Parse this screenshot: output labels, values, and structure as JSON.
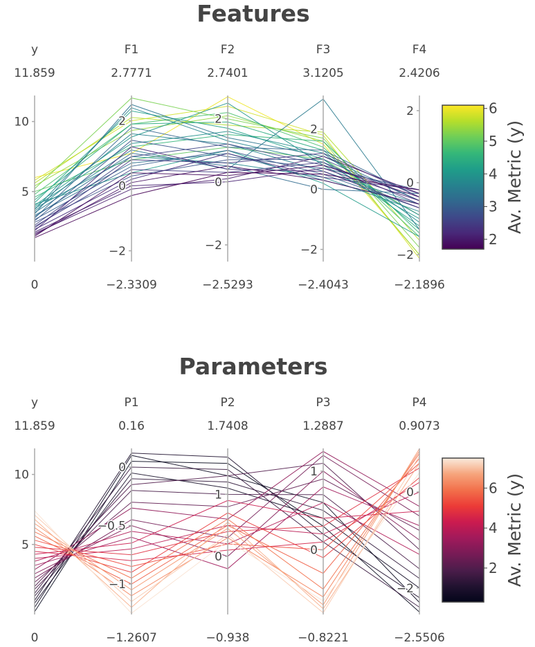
{
  "panels": [
    {
      "title": "Features",
      "colorbar": {
        "title": "Av. Metric (y)",
        "ticks": [
          2,
          3,
          4,
          5,
          6
        ],
        "range": [
          1.7,
          6.1
        ],
        "colorscale": "viridis"
      }
    },
    {
      "title": "Parameters",
      "colorbar": {
        "title": "Av. Metric (y)",
        "ticks": [
          2,
          4,
          6
        ],
        "range": [
          0.3,
          7.5
        ],
        "colorscale": "rocket"
      }
    }
  ],
  "chart_data": [
    {
      "type": "parallel_coordinates",
      "title": "Features",
      "color_by": "y",
      "colorbar_title": "Av. Metric (y)",
      "dimensions": [
        {
          "label": "y",
          "max": "11.859",
          "min": "0",
          "range": [
            0,
            11.859
          ],
          "ticks": [
            5,
            10
          ]
        },
        {
          "label": "F1",
          "max": "2.7771",
          "min": "−2.3309",
          "range": [
            -2.3309,
            2.7771
          ],
          "ticks": [
            -2,
            0,
            2
          ]
        },
        {
          "label": "F2",
          "max": "2.7401",
          "min": "−2.5293",
          "range": [
            -2.5293,
            2.7401
          ],
          "ticks": [
            -2,
            0,
            2
          ]
        },
        {
          "label": "F3",
          "max": "3.1205",
          "min": "−2.4043",
          "range": [
            -2.4043,
            3.1205
          ],
          "ticks": [
            -2,
            0,
            2
          ]
        },
        {
          "label": "F4",
          "max": "2.4206",
          "min": "−2.1896",
          "range": [
            -2.1896,
            2.4206
          ],
          "ticks": [
            -2,
            0,
            2
          ]
        }
      ],
      "series": [
        {
          "values": [
            6.0,
            1.0,
            2.7,
            1.5,
            -2.0
          ]
        },
        {
          "values": [
            5.8,
            2.0,
            2.4,
            1.8,
            -2.1
          ]
        },
        {
          "values": [
            5.6,
            2.1,
            1.8,
            1.9,
            -1.6
          ]
        },
        {
          "values": [
            5.4,
            1.7,
            2.1,
            1.6,
            -2.0
          ]
        },
        {
          "values": [
            5.2,
            2.7,
            2.0,
            1.7,
            -1.8
          ]
        },
        {
          "values": [
            5.0,
            0.8,
            1.1,
            1.0,
            -0.9
          ]
        },
        {
          "values": [
            4.8,
            1.9,
            2.2,
            1.4,
            -1.5
          ]
        },
        {
          "values": [
            4.6,
            1.2,
            1.5,
            1.6,
            -1.4
          ]
        },
        {
          "values": [
            4.4,
            1.9,
            1.9,
            1.3,
            -1.3
          ]
        },
        {
          "values": [
            4.2,
            2.3,
            1.7,
            1.0,
            -1.2
          ]
        },
        {
          "values": [
            4.1,
            0.4,
            1.0,
            0.2,
            -1.5
          ]
        },
        {
          "values": [
            4.0,
            1.5,
            2.5,
            0.8,
            -1.0
          ]
        },
        {
          "values": [
            3.9,
            1.3,
            1.6,
            1.2,
            -1.1
          ]
        },
        {
          "values": [
            3.8,
            0.9,
            0.6,
            0.4,
            -0.8
          ]
        },
        {
          "values": [
            3.7,
            2.4,
            1.3,
            0.9,
            -0.9
          ]
        },
        {
          "values": [
            3.6,
            1.6,
            1.2,
            0.6,
            -0.6
          ]
        },
        {
          "values": [
            3.5,
            1.1,
            0.4,
            3.0,
            -1.3
          ]
        },
        {
          "values": [
            3.4,
            2.5,
            1.4,
            1.1,
            -0.5
          ]
        },
        {
          "values": [
            3.3,
            0.7,
            0.9,
            0.3,
            -0.6
          ]
        },
        {
          "values": [
            3.2,
            1.0,
            0.5,
            0.0,
            -0.3
          ]
        },
        {
          "values": [
            3.1,
            1.8,
            1.1,
            1.3,
            -0.4
          ]
        },
        {
          "values": [
            3.0,
            0.6,
            1.0,
            0.5,
            -0.7
          ]
        },
        {
          "values": [
            2.9,
            1.4,
            0.8,
            0.7,
            -0.2
          ]
        },
        {
          "values": [
            2.8,
            0.3,
            0.7,
            1.0,
            -0.5
          ]
        },
        {
          "values": [
            2.6,
            0.9,
            1.2,
            0.8,
            -0.3
          ]
        },
        {
          "values": [
            2.5,
            0.5,
            0.3,
            0.9,
            -0.6
          ]
        },
        {
          "values": [
            2.4,
            0.8,
            0.6,
            1.2,
            -0.4
          ]
        },
        {
          "values": [
            2.3,
            0.2,
            0.9,
            0.4,
            -0.2
          ]
        },
        {
          "values": [
            2.2,
            1.2,
            0.4,
            0.6,
            -0.7
          ]
        },
        {
          "values": [
            2.1,
            0.0,
            0.0,
            0.7,
            -0.5
          ]
        },
        {
          "values": [
            2.0,
            -0.1,
            0.1,
            1.1,
            -0.3
          ]
        },
        {
          "values": [
            1.9,
            0.1,
            0.5,
            0.3,
            -0.6
          ]
        },
        {
          "values": [
            1.8,
            0.4,
            0.2,
            0.8,
            -0.4
          ]
        },
        {
          "values": [
            1.7,
            -0.3,
            0.3,
            0.5,
            -0.2
          ]
        }
      ]
    },
    {
      "type": "parallel_coordinates",
      "title": "Parameters",
      "color_by": "y",
      "colorbar_title": "Av. Metric (y)",
      "dimensions": [
        {
          "label": "y",
          "max": "11.859",
          "min": "0",
          "range": [
            0,
            11.859
          ],
          "ticks": [
            5,
            10
          ]
        },
        {
          "label": "P1",
          "max": "0.16",
          "min": "−1.2607",
          "range": [
            -1.2607,
            0.16
          ],
          "ticks": [
            -1,
            -0.5,
            0
          ]
        },
        {
          "label": "P2",
          "max": "1.7408",
          "min": "−0.938",
          "range": [
            -0.938,
            1.7408
          ],
          "ticks": [
            0,
            1
          ]
        },
        {
          "label": "P3",
          "max": "1.2887",
          "min": "−0.8221",
          "range": [
            -0.8221,
            1.2887
          ],
          "ticks": [
            0,
            1
          ]
        },
        {
          "label": "P4",
          "max": "0.9073",
          "min": "−2.5506",
          "range": [
            -2.5506,
            0.9073
          ],
          "ticks": [
            -2,
            0
          ]
        }
      ],
      "series": [
        {
          "values": [
            0.2,
            0.05,
            1.5,
            0.3,
            -2.5
          ]
        },
        {
          "values": [
            0.5,
            0.1,
            1.3,
            0.6,
            -2.3
          ]
        },
        {
          "values": [
            0.8,
            -0.05,
            1.1,
            0.4,
            -2.0
          ]
        },
        {
          "values": [
            1.0,
            0.12,
            1.6,
            0.2,
            -2.2
          ]
        },
        {
          "values": [
            1.3,
            -0.1,
            1.2,
            0.5,
            -1.8
          ]
        },
        {
          "values": [
            1.5,
            0.0,
            1.4,
            0.1,
            -2.4
          ]
        },
        {
          "values": [
            1.8,
            -0.2,
            1.0,
            0.7,
            -1.6
          ]
        },
        {
          "values": [
            2.0,
            -0.15,
            1.3,
            1.1,
            -1.2
          ]
        },
        {
          "values": [
            2.3,
            -0.3,
            0.8,
            0.9,
            -0.8
          ]
        },
        {
          "values": [
            2.6,
            -0.45,
            0.3,
            1.2,
            -0.5
          ]
        },
        {
          "values": [
            2.9,
            -0.5,
            0.0,
            1.0,
            -1.0
          ]
        },
        {
          "values": [
            3.2,
            -0.35,
            0.6,
            1.25,
            -0.3
          ]
        },
        {
          "values": [
            3.5,
            -0.6,
            -0.2,
            0.8,
            -0.7
          ]
        },
        {
          "values": [
            3.8,
            -0.55,
            0.2,
            0.6,
            -1.3
          ]
        },
        {
          "values": [
            4.0,
            -0.7,
            0.5,
            0.2,
            0.0
          ]
        },
        {
          "values": [
            4.3,
            -0.65,
            0.9,
            0.4,
            -0.4
          ]
        },
        {
          "values": [
            4.5,
            -0.8,
            0.1,
            0.1,
            0.2
          ]
        },
        {
          "values": [
            4.8,
            -0.75,
            0.4,
            0.3,
            0.5
          ]
        },
        {
          "values": [
            5.0,
            -0.9,
            0.7,
            -0.1,
            0.3
          ]
        },
        {
          "values": [
            5.3,
            -0.85,
            0.2,
            0.0,
            0.6
          ]
        },
        {
          "values": [
            5.6,
            -1.0,
            0.5,
            -0.3,
            0.7
          ]
        },
        {
          "values": [
            5.9,
            -0.95,
            0.6,
            -0.5,
            0.8
          ]
        },
        {
          "values": [
            6.2,
            -1.1,
            0.3,
            -0.6,
            0.85
          ]
        },
        {
          "values": [
            6.5,
            -1.05,
            0.45,
            -0.7,
            0.9
          ]
        },
        {
          "values": [
            6.8,
            -1.2,
            0.55,
            -0.75,
            0.6
          ]
        },
        {
          "values": [
            7.1,
            -1.15,
            0.35,
            -0.8,
            0.75
          ]
        },
        {
          "values": [
            7.4,
            -1.25,
            0.25,
            -0.65,
            0.4
          ]
        }
      ]
    }
  ]
}
